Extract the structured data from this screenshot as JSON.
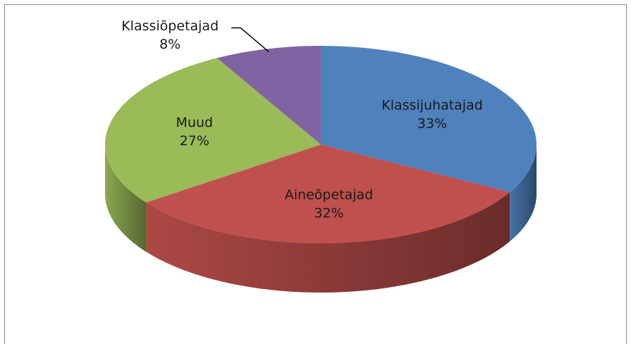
{
  "chart_data": {
    "type": "pie",
    "categories": [
      "Klassijuhatajad",
      "Aineõpetajad",
      "Muud",
      "Klassiõpetajad"
    ],
    "values": [
      33,
      32,
      27,
      8
    ],
    "value_labels": [
      "33%",
      "32%",
      "27%",
      "8%"
    ],
    "colors": [
      "#4f81bd",
      "#c0504d",
      "#9bbb59",
      "#8064a2"
    ]
  }
}
